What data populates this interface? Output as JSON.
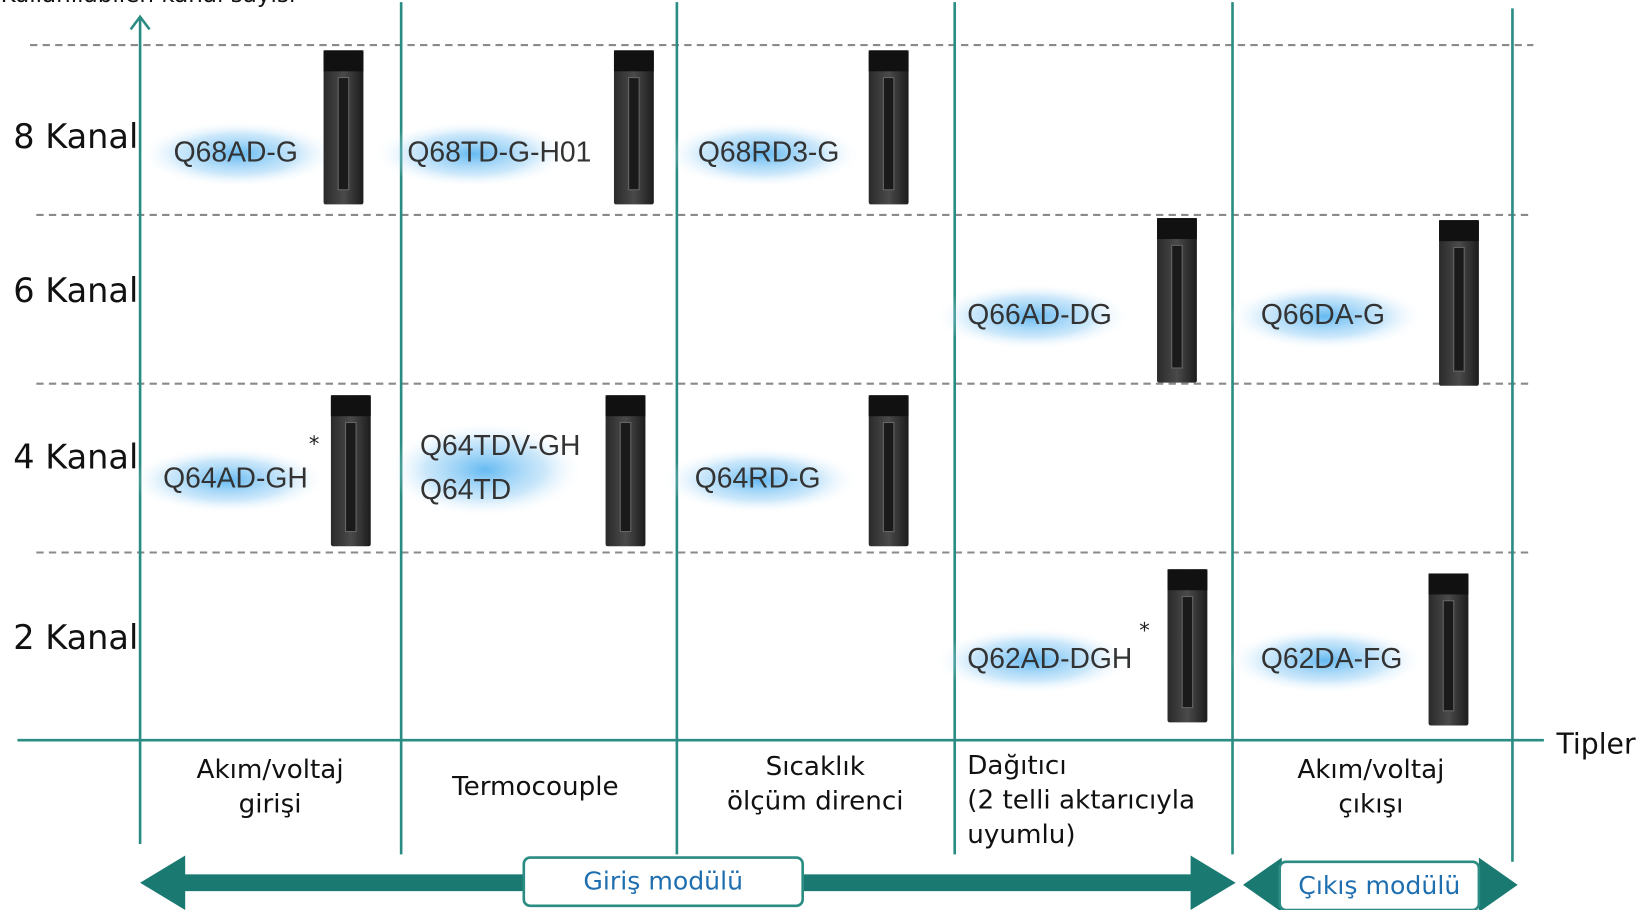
{
  "axis": {
    "y_label": "Kullanılabilen kanal sayısı",
    "x_label": "Tipler"
  },
  "rows": [
    "8 Kanal",
    "6 Kanal",
    "4 Kanal",
    "2 Kanal"
  ],
  "columns": [
    {
      "lines": [
        "Akım/voltaj",
        "girişi"
      ]
    },
    {
      "lines": [
        "Termocouple"
      ]
    },
    {
      "lines": [
        "Sıcaklık",
        "ölçüm direnci"
      ]
    },
    {
      "lines": [
        "Dağıtıcı",
        "(2 telli aktarıcıyla",
        "uyumlu)"
      ]
    },
    {
      "lines": [
        "Akım/voltaj",
        "çıkışı"
      ]
    }
  ],
  "modules": [
    {
      "labels": [
        "Q68AD-G"
      ]
    },
    {
      "labels": [
        "Q68TD-G-H01"
      ]
    },
    {
      "labels": [
        "Q68RD3-G"
      ]
    },
    {
      "labels": [
        "Q66AD-DG"
      ]
    },
    {
      "labels": [
        "Q66DA-G"
      ]
    },
    {
      "labels": [
        "Q64AD-GH"
      ],
      "mark": "*"
    },
    {
      "labels": [
        "Q64TDV-GH",
        "Q64TD"
      ]
    },
    {
      "labels": [
        "Q64RD-G"
      ]
    },
    {
      "labels": [
        "Q62AD-DGH"
      ],
      "mark": "*"
    },
    {
      "labels": [
        "Q62DA-FG"
      ]
    }
  ],
  "groups": [
    "Giriş modülü",
    "Çıkış modülü"
  ]
}
